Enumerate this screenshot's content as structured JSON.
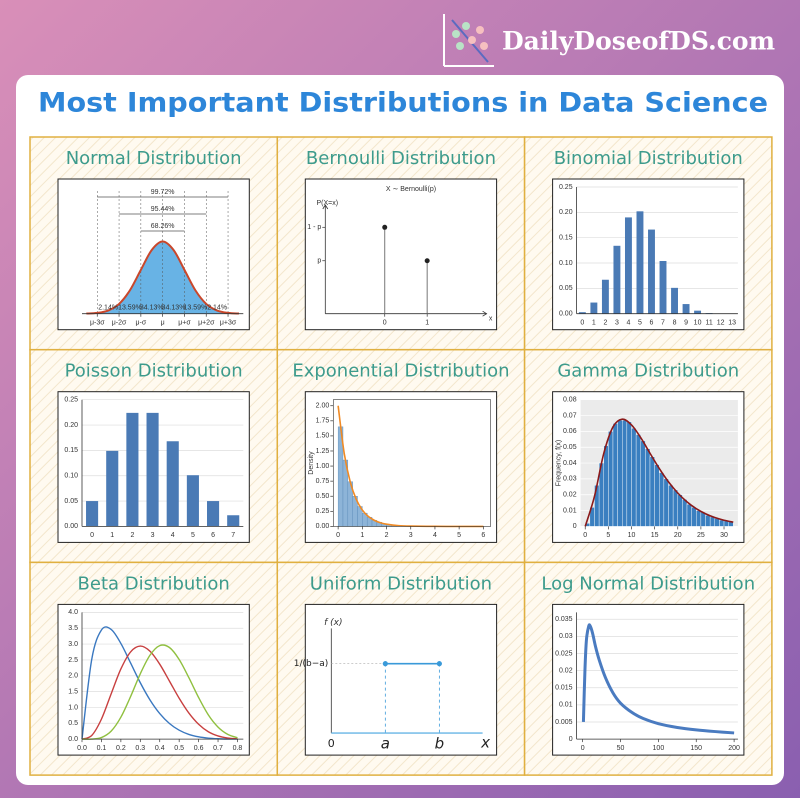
{
  "header": {
    "site": "DailyDoseofDS.com",
    "title": "Most Important Distributions in Data Science"
  },
  "chart_data": [
    {
      "type": "area",
      "title": "Normal Distribution",
      "x": [
        -3.5,
        -3,
        -2.5,
        -2,
        -1.5,
        -1,
        -0.5,
        0,
        0.5,
        1,
        1.5,
        2,
        2.5,
        3,
        3.5
      ],
      "values": [
        0.0009,
        0.0044,
        0.0175,
        0.054,
        0.1295,
        0.242,
        0.3521,
        0.3989,
        0.3521,
        0.242,
        0.1295,
        0.054,
        0.0175,
        0.0044,
        0.0009
      ],
      "color": "#4ea6e0",
      "line_color": "#c9472b",
      "xlim": [
        -3.7,
        3.7
      ],
      "ylim": [
        0,
        0.7
      ],
      "xticks": [
        {
          "value": -3,
          "label": "μ-3σ"
        },
        {
          "value": -2,
          "label": "μ-2σ"
        },
        {
          "value": -1,
          "label": "μ-σ"
        },
        {
          "value": 0,
          "label": "μ"
        },
        {
          "value": 1,
          "label": "μ+σ"
        },
        {
          "value": 2,
          "label": "μ+2σ"
        },
        {
          "value": 3,
          "label": "μ+3σ"
        }
      ],
      "segments": {
        "values": [
          2.14,
          13.59,
          34.13,
          34.13,
          13.59,
          2.14
        ],
        "value_labels": [
          "2.14%",
          "13.59%",
          "34.13%",
          "34.13%",
          "13.59%",
          "2.14%"
        ]
      },
      "brackets": {
        "values": [
          99.72,
          95.44,
          68.26
        ],
        "value_labels": [
          "99.72%",
          "95.44%",
          "68.26%"
        ]
      }
    },
    {
      "type": "stem",
      "title": "Bernoulli Distribution",
      "plot_title": "X ∼ Bernoulli(p)",
      "ylabel": "P(X=x)",
      "xlabel": "x",
      "x": [
        0,
        1
      ],
      "values": [
        0.62,
        0.38
      ],
      "color": "#555555",
      "xlim": [
        -1.4,
        2.4
      ],
      "ylim": [
        0,
        0.78
      ],
      "xticks": [
        0,
        1
      ],
      "yticks": [
        {
          "value": 0.62,
          "label": "1 - p"
        },
        {
          "value": 0.38,
          "label": "p"
        }
      ]
    },
    {
      "type": "bar",
      "title": "Binomial Distribution",
      "categories": [
        "0",
        "1",
        "2",
        "3",
        "4",
        "5",
        "6",
        "7",
        "8",
        "9",
        "10",
        "11",
        "12",
        "13"
      ],
      "values": [
        0.003,
        0.022,
        0.067,
        0.134,
        0.19,
        0.202,
        0.166,
        0.104,
        0.051,
        0.019,
        0.006,
        0.0012,
        0.0002,
        0
      ],
      "color": "#4a7ab5",
      "ylim": [
        0,
        0.25
      ],
      "grid": true,
      "yticks": [
        {
          "value": 0,
          "label": "0.00"
        },
        {
          "value": 0.05,
          "label": "0.05"
        },
        {
          "value": 0.1,
          "label": "0.10"
        },
        {
          "value": 0.15,
          "label": "0.15"
        },
        {
          "value": 0.2,
          "label": "0.20"
        },
        {
          "value": 0.25,
          "label": "0.25"
        }
      ]
    },
    {
      "type": "bar",
      "title": "Poisson Distribution",
      "categories": [
        "0",
        "1",
        "2",
        "3",
        "4",
        "5",
        "6",
        "7"
      ],
      "values": [
        0.05,
        0.149,
        0.224,
        0.224,
        0.168,
        0.101,
        0.05,
        0.022
      ],
      "color": "#4a7ab5",
      "ylim": [
        0,
        0.25
      ],
      "grid": true,
      "yticks": [
        {
          "value": 0,
          "label": "0.00"
        },
        {
          "value": 0.05,
          "label": "0.05"
        },
        {
          "value": 0.1,
          "label": "0.10"
        },
        {
          "value": 0.15,
          "label": "0.15"
        },
        {
          "value": 0.2,
          "label": "0.20"
        },
        {
          "value": 0.25,
          "label": "0.25"
        }
      ]
    },
    {
      "type": "histogram",
      "title": "Exponential Distribution",
      "ylabel": "Density",
      "bins": [
        0,
        0.2,
        0.4,
        0.6,
        0.8,
        1,
        1.2,
        1.4,
        1.6,
        1.8,
        2,
        2.2,
        2.4,
        2.6,
        2.8,
        3
      ],
      "values": [
        1.65,
        1.1,
        0.74,
        0.5,
        0.33,
        0.22,
        0.15,
        0.1,
        0.07,
        0.045,
        0.03,
        0.02,
        0.014,
        0.009,
        0.006
      ],
      "color": "#8db4d8",
      "curve": {
        "color": "#f08a24",
        "x": [
          0,
          0.25,
          0.5,
          0.75,
          1,
          1.25,
          1.5,
          1.75,
          2,
          2.5,
          3,
          4,
          5,
          6
        ],
        "values": [
          2,
          1.213,
          0.736,
          0.446,
          0.271,
          0.164,
          0.1,
          0.06,
          0.037,
          0.013,
          0.005,
          0.0007,
          0.0001,
          0
        ]
      },
      "xlim": [
        -0.2,
        6.3
      ],
      "ylim": [
        0,
        2.1
      ],
      "xticks": [
        0,
        1,
        2,
        3,
        4,
        5,
        6
      ],
      "yticks": [
        {
          "value": 0,
          "label": "0.00"
        },
        {
          "value": 0.25,
          "label": "0.25"
        },
        {
          "value": 0.5,
          "label": "0.50"
        },
        {
          "value": 0.75,
          "label": "0.75"
        },
        {
          "value": 1,
          "label": "1.00"
        },
        {
          "value": 1.25,
          "label": "1.25"
        },
        {
          "value": 1.5,
          "label": "1.50"
        },
        {
          "value": 1.75,
          "label": "1.75"
        },
        {
          "value": 2,
          "label": "2.00"
        }
      ]
    },
    {
      "type": "histogram",
      "title": "Gamma Distribution",
      "ylabel": "Frequency, f(x)",
      "bins": [
        0,
        1,
        2,
        3,
        4,
        5,
        6,
        7,
        8,
        9,
        10,
        11,
        12,
        13,
        14,
        15,
        16,
        17,
        18,
        19,
        20,
        21,
        22,
        23,
        24,
        25,
        26,
        27,
        28,
        29,
        30,
        31,
        32
      ],
      "values": [
        0.002,
        0.012,
        0.026,
        0.04,
        0.051,
        0.06,
        0.065,
        0.067,
        0.067,
        0.066,
        0.062,
        0.058,
        0.054,
        0.049,
        0.044,
        0.039,
        0.034,
        0.03,
        0.026,
        0.023,
        0.02,
        0.017,
        0.014,
        0.012,
        0.01,
        0.009,
        0.007,
        0.006,
        0.005,
        0.004,
        0.0035,
        0.003
      ],
      "color": "#3a7fc0",
      "background": "#ebebeb",
      "grid": true,
      "curve": {
        "color": "#8b1a1a",
        "x": [
          0,
          2,
          4,
          6,
          8,
          10,
          12,
          14,
          16,
          18,
          20,
          22,
          24,
          26,
          28,
          30,
          32
        ],
        "values": [
          0,
          0.019,
          0.046,
          0.0628,
          0.0677,
          0.0641,
          0.056,
          0.0462,
          0.0366,
          0.0281,
          0.0211,
          0.0155,
          0.0112,
          0.008,
          0.0056,
          0.0039,
          0.0027
        ]
      },
      "xlim": [
        -1,
        33
      ],
      "ylim": [
        0,
        0.08
      ],
      "xticks": [
        0,
        5,
        10,
        15,
        20,
        25,
        30
      ],
      "yticks": [
        0,
        0.01,
        0.02,
        0.03,
        0.04,
        0.05,
        0.06,
        0.07,
        0.08
      ]
    },
    {
      "type": "line",
      "title": "Beta Distribution",
      "grid": true,
      "x": [
        0,
        0.05,
        0.1,
        0.15,
        0.2,
        0.25,
        0.3,
        0.35,
        0.4,
        0.45,
        0.5,
        0.55,
        0.6,
        0.65,
        0.7,
        0.75,
        0.8
      ],
      "series": [
        {
          "color": "#3a78c0",
          "values": [
            0,
            2.514,
            3.444,
            3.463,
            3.02,
            2.403,
            1.779,
            1.235,
            0.806,
            0.493,
            0.281,
            0.148,
            0.071,
            0.03,
            0.011,
            0.003,
            0.001
          ]
        },
        {
          "color": "#c84040",
          "values": [
            0,
            0.115,
            0.631,
            1.428,
            2.214,
            2.753,
            2.936,
            2.773,
            2.365,
            1.831,
            1.289,
            0.821,
            0.468,
            0.232,
            0.099,
            0.034,
            0.009
          ]
        },
        {
          "color": "#90c040",
          "values": [
            0,
            0.002,
            0.049,
            0.251,
            0.691,
            1.343,
            2.062,
            2.65,
            2.952,
            2.892,
            2.514,
            1.938,
            1.313,
            0.765,
            0.379,
            0.149,
            0.043
          ]
        }
      ],
      "xlim": [
        0,
        0.83
      ],
      "ylim": [
        0,
        4
      ],
      "xticks": [
        {
          "value": 0,
          "label": "0.0"
        },
        {
          "value": 0.1,
          "label": "0.1"
        },
        {
          "value": 0.2,
          "label": "0.2"
        },
        {
          "value": 0.3,
          "label": "0.3"
        },
        {
          "value": 0.4,
          "label": "0.4"
        },
        {
          "value": 0.5,
          "label": "0.5"
        },
        {
          "value": 0.6,
          "label": "0.6"
        },
        {
          "value": 0.7,
          "label": "0.7"
        },
        {
          "value": 0.8,
          "label": "0.8"
        }
      ],
      "yticks": [
        {
          "value": 0,
          "label": "0.0"
        },
        {
          "value": 0.5,
          "label": "0.5"
        },
        {
          "value": 1,
          "label": "1.0"
        },
        {
          "value": 1.5,
          "label": "1.5"
        },
        {
          "value": 2,
          "label": "2.0"
        },
        {
          "value": 2.5,
          "label": "2.5"
        },
        {
          "value": 3,
          "label": "3.0"
        },
        {
          "value": 3.5,
          "label": "3.5"
        },
        {
          "value": 4,
          "label": "4.0"
        }
      ]
    },
    {
      "type": "interval",
      "title": "Uniform Distribution",
      "ylabel": "f (x)",
      "xlabel": "x",
      "x": [
        1,
        2
      ],
      "values": [
        1,
        1
      ],
      "color": "#3a9ad9",
      "xlim": [
        0,
        2.8
      ],
      "ylim": [
        0,
        1.45
      ],
      "xticks": [
        0,
        {
          "value": 1,
          "label": "a"
        },
        {
          "value": 2,
          "label": "b"
        }
      ],
      "yticks": [
        {
          "value": 1,
          "label": "1/(b−a)"
        }
      ]
    },
    {
      "type": "line",
      "title": "Log Normal Distribution",
      "grid": true,
      "x": [
        1,
        3,
        5,
        8,
        10,
        13,
        17,
        22,
        30,
        40,
        50,
        65,
        80,
        100,
        125,
        150,
        175,
        200
      ],
      "series": [
        {
          "color": "#4a7bc0",
          "values": [
            0.005,
            0.02,
            0.029,
            0.033,
            0.033,
            0.031,
            0.027,
            0.023,
            0.018,
            0.0135,
            0.0105,
            0.0078,
            0.006,
            0.0045,
            0.0034,
            0.0027,
            0.0022,
            0.0018
          ]
        }
      ],
      "xlim": [
        -8,
        205
      ],
      "ylim": [
        0,
        0.037
      ],
      "xticks": [
        0,
        50,
        100,
        150,
        200
      ],
      "yticks": [
        0,
        0.005,
        0.01,
        0.015,
        0.02,
        0.025,
        0.03,
        0.035
      ]
    }
  ]
}
